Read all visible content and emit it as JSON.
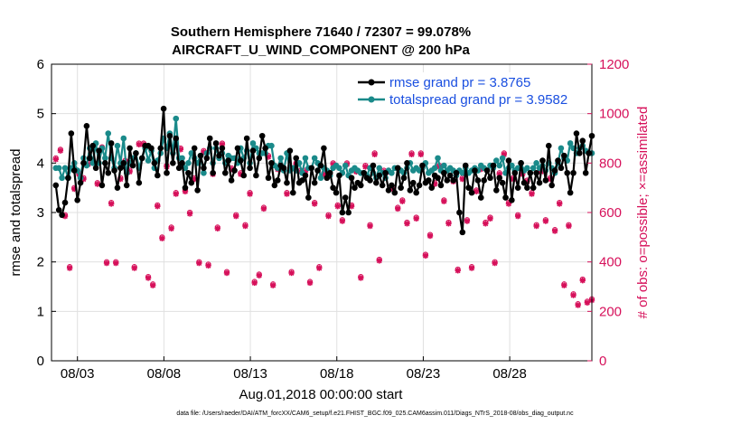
{
  "chart_data": {
    "type": "line",
    "title": [
      "Southern Hemisphere 71640 / 72307 = 99.078%",
      "AIRCRAFT_U_WIND_COMPONENT @ 200 hPa"
    ],
    "xlabel": "Aug.01,2018 00:00:00 start",
    "ylabel": "rmse and totalspread",
    "y2label": "# of obs: o=possible; ×=assimilated",
    "footnote": "data file: /Users/raeder/DAI/ATM_forcXX/CAM6_setup/f.e21.FHIST_BGC.f09_025.CAM6assim.011/Diags_NTrS_2018-08/obs_diag_output.nc",
    "xlim": [
      1.5,
      32.75
    ],
    "ylim": [
      0,
      6
    ],
    "y2lim": [
      0,
      1200
    ],
    "xticks": [
      3,
      8,
      13,
      18,
      23,
      28
    ],
    "xticklabels": [
      "08/03",
      "08/08",
      "08/13",
      "08/18",
      "08/23",
      "08/28"
    ],
    "yticks": [
      0,
      1,
      2,
      3,
      4,
      5,
      6
    ],
    "y2ticks": [
      0,
      200,
      400,
      600,
      800,
      1000,
      1200
    ],
    "legend": {
      "position": "top-right",
      "entries": [
        "rmse grand pr = 3.8765",
        "totalspread grand pr = 3.9582"
      ]
    },
    "colors": {
      "rmse": "#000000",
      "spread": "#1a8a8a",
      "obs": "#d6105a",
      "legend_text": "#1a4fe0"
    },
    "series": [
      {
        "name": "rmse",
        "values": [
          3.55,
          3.05,
          2.95,
          3.2,
          3.7,
          4.6,
          3.85,
          3.25,
          3.6,
          4.0,
          4.75,
          4.1,
          4.35,
          3.9,
          4.25,
          3.55,
          4.0,
          3.8,
          4.4,
          3.85,
          3.5,
          3.9,
          4.0,
          3.55,
          4.3,
          3.95,
          4.2,
          3.6,
          4.1,
          4.35,
          4.35,
          4.3,
          4.0,
          3.75,
          4.3,
          5.1,
          3.8,
          4.55,
          4.0,
          4.5,
          3.9,
          4.0,
          3.5,
          3.8,
          3.6,
          4.3,
          3.45,
          4.15,
          3.9,
          4.1,
          4.5,
          3.8,
          4.4,
          4.15,
          4.3,
          3.8,
          4.05,
          3.65,
          3.85,
          4.3,
          4.05,
          3.75,
          4.5,
          3.9,
          4.25,
          3.75,
          4.1,
          4.55,
          4.3,
          3.7,
          4.0,
          3.55,
          3.65,
          3.95,
          3.9,
          3.6,
          4.25,
          3.4,
          4.1,
          3.6,
          3.65,
          3.75,
          3.3,
          3.9,
          3.6,
          3.85,
          3.95,
          4.3,
          3.7,
          3.8,
          3.5,
          3.4,
          3.75,
          3.0,
          3.3,
          3.0,
          3.7,
          3.5,
          3.6,
          3.55,
          3.8,
          3.7,
          3.65,
          3.95,
          3.6,
          3.75,
          3.55,
          3.8,
          3.45,
          3.55,
          3.4,
          3.9,
          3.5,
          3.7,
          4.0,
          3.45,
          3.6,
          3.4,
          3.55,
          3.95,
          3.6,
          3.65,
          3.5,
          3.75,
          3.7,
          3.55,
          3.8,
          3.65,
          3.75,
          3.65,
          3.8,
          3.0,
          2.6,
          3.95,
          3.5,
          3.4,
          3.85,
          3.65,
          3.3,
          3.65,
          3.85,
          3.7,
          3.95,
          3.45,
          3.7,
          3.6,
          3.3,
          4.05,
          3.25,
          3.8,
          3.5,
          4.0,
          3.6,
          3.5,
          3.8,
          3.5,
          3.8,
          3.6,
          4.05,
          3.65,
          4.35,
          3.55,
          3.85,
          4.05,
          3.9,
          4.15,
          3.8,
          3.4,
          3.8,
          4.6,
          4.2,
          4.45,
          3.8,
          4.2,
          4.55
        ]
      },
      {
        "name": "totalspread",
        "values": [
          3.9,
          3.9,
          3.7,
          3.9,
          3.7,
          3.9,
          4.0,
          3.85,
          3.7,
          4.1,
          3.95,
          4.3,
          4.0,
          4.4,
          4.0,
          4.3,
          4.1,
          4.6,
          4.1,
          3.9,
          4.35,
          4.0,
          4.5,
          3.8,
          4.0,
          4.1,
          4.2,
          3.9,
          4.1,
          4.3,
          4.05,
          4.25,
          3.9,
          4.05,
          4.2,
          4.5,
          4.3,
          4.6,
          4.2,
          4.9,
          4.1,
          4.1,
          3.9,
          4.0,
          4.2,
          4.1,
          4.0,
          4.15,
          3.8,
          4.2,
          4.3,
          4.0,
          4.3,
          4.1,
          4.2,
          4.0,
          4.15,
          4.1,
          4.1,
          4.0,
          4.3,
          4.1,
          4.25,
          4.0,
          4.4,
          4.3,
          4.2,
          4.2,
          4.2,
          4.35,
          4.35,
          3.95,
          3.9,
          4.1,
          3.85,
          4.2,
          3.85,
          3.9,
          3.85,
          4.0,
          3.8,
          4.1,
          3.9,
          3.9,
          4.1,
          4.0,
          3.7,
          3.9,
          3.85,
          3.75,
          3.9,
          3.95,
          3.9,
          3.8,
          3.95,
          3.75,
          3.85,
          3.9,
          3.85,
          3.8,
          3.8,
          3.75,
          3.9,
          3.8,
          3.7,
          3.9,
          3.8,
          3.7,
          3.85,
          3.8,
          3.9,
          3.9,
          3.85,
          3.8,
          3.9,
          4.0,
          3.85,
          3.9,
          3.85,
          3.9,
          4.0,
          3.8,
          3.85,
          3.9,
          4.1,
          3.85,
          3.95,
          3.85,
          3.9,
          3.85,
          3.75,
          3.85,
          3.8,
          3.9,
          3.8,
          3.85,
          3.9,
          3.85,
          3.95,
          3.9,
          3.85,
          3.95,
          3.9,
          4.05,
          3.95,
          4.1,
          3.8,
          3.9,
          3.95,
          3.85,
          3.9,
          4.0,
          3.85,
          3.9,
          3.8,
          3.9,
          4.0,
          3.9,
          3.95,
          3.85,
          4.0,
          3.9,
          3.8,
          4.0,
          4.3,
          4.1,
          4.05,
          4.4,
          4.3,
          4.2,
          4.3,
          4.35,
          4.25,
          4.2,
          4.2
        ]
      },
      {
        "name": "obs_possible",
        "values": [
          820,
          855,
          590,
          380,
          700,
          760,
          740,
          800,
          870,
          720,
          865,
          400,
          640,
          400,
          740,
          810,
          770,
          380,
          880,
          880,
          340,
          310,
          630,
          500,
          790,
          540,
          680,
          860,
          690,
          600,
          740,
          400,
          850,
          390,
          760,
          540,
          880,
          360,
          780,
          590,
          760,
          550,
          680,
          320,
          350,
          620,
          830,
          310,
          780,
          780,
          680,
          360,
          800,
          770,
          770,
          320,
          640,
          380,
          760,
          590,
          800,
          630,
          570,
          800,
          630,
          770,
          340,
          790,
          550,
          840,
          410,
          770,
          770,
          700,
          620,
          650,
          560,
          840,
          580,
          840,
          430,
          510,
          720,
          790,
          650,
          560,
          730,
          370,
          740,
          570,
          380,
          690,
          780,
          560,
          580,
          400,
          760,
          840,
          640,
          740,
          590,
          760,
          730,
          680,
          550,
          770,
          570,
          740,
          530,
          640,
          310,
          550,
          270,
          230,
          330,
          240,
          250
        ],
        "values_assimilated_offset": -5
      },
      {
        "name": "obs_assimilated",
        "values": [
          815,
          850,
          585,
          375,
          695,
          755,
          735,
          795,
          865,
          715,
          860,
          395,
          635,
          395,
          735,
          805,
          765,
          375,
          875,
          875,
          335,
          305,
          625,
          495,
          785,
          535,
          675,
          855,
          685,
          595,
          735,
          395,
          845,
          385,
          755,
          535,
          875,
          355,
          775,
          585,
          755,
          545,
          675,
          315,
          345,
          615,
          825,
          305,
          775,
          775,
          675,
          355,
          795,
          765,
          765,
          315,
          635,
          375,
          755,
          585,
          795,
          625,
          565,
          795,
          625,
          765,
          335,
          785,
          545,
          835,
          405,
          765,
          765,
          695,
          615,
          645,
          555,
          835,
          575,
          835,
          425,
          505,
          715,
          785,
          645,
          555,
          725,
          365,
          735,
          565,
          375,
          685,
          775,
          555,
          575,
          395,
          755,
          835,
          635,
          735,
          585,
          755,
          725,
          675,
          545,
          765,
          565,
          735,
          525,
          635,
          305,
          545,
          265,
          225,
          325,
          235,
          245
        ]
      }
    ]
  }
}
